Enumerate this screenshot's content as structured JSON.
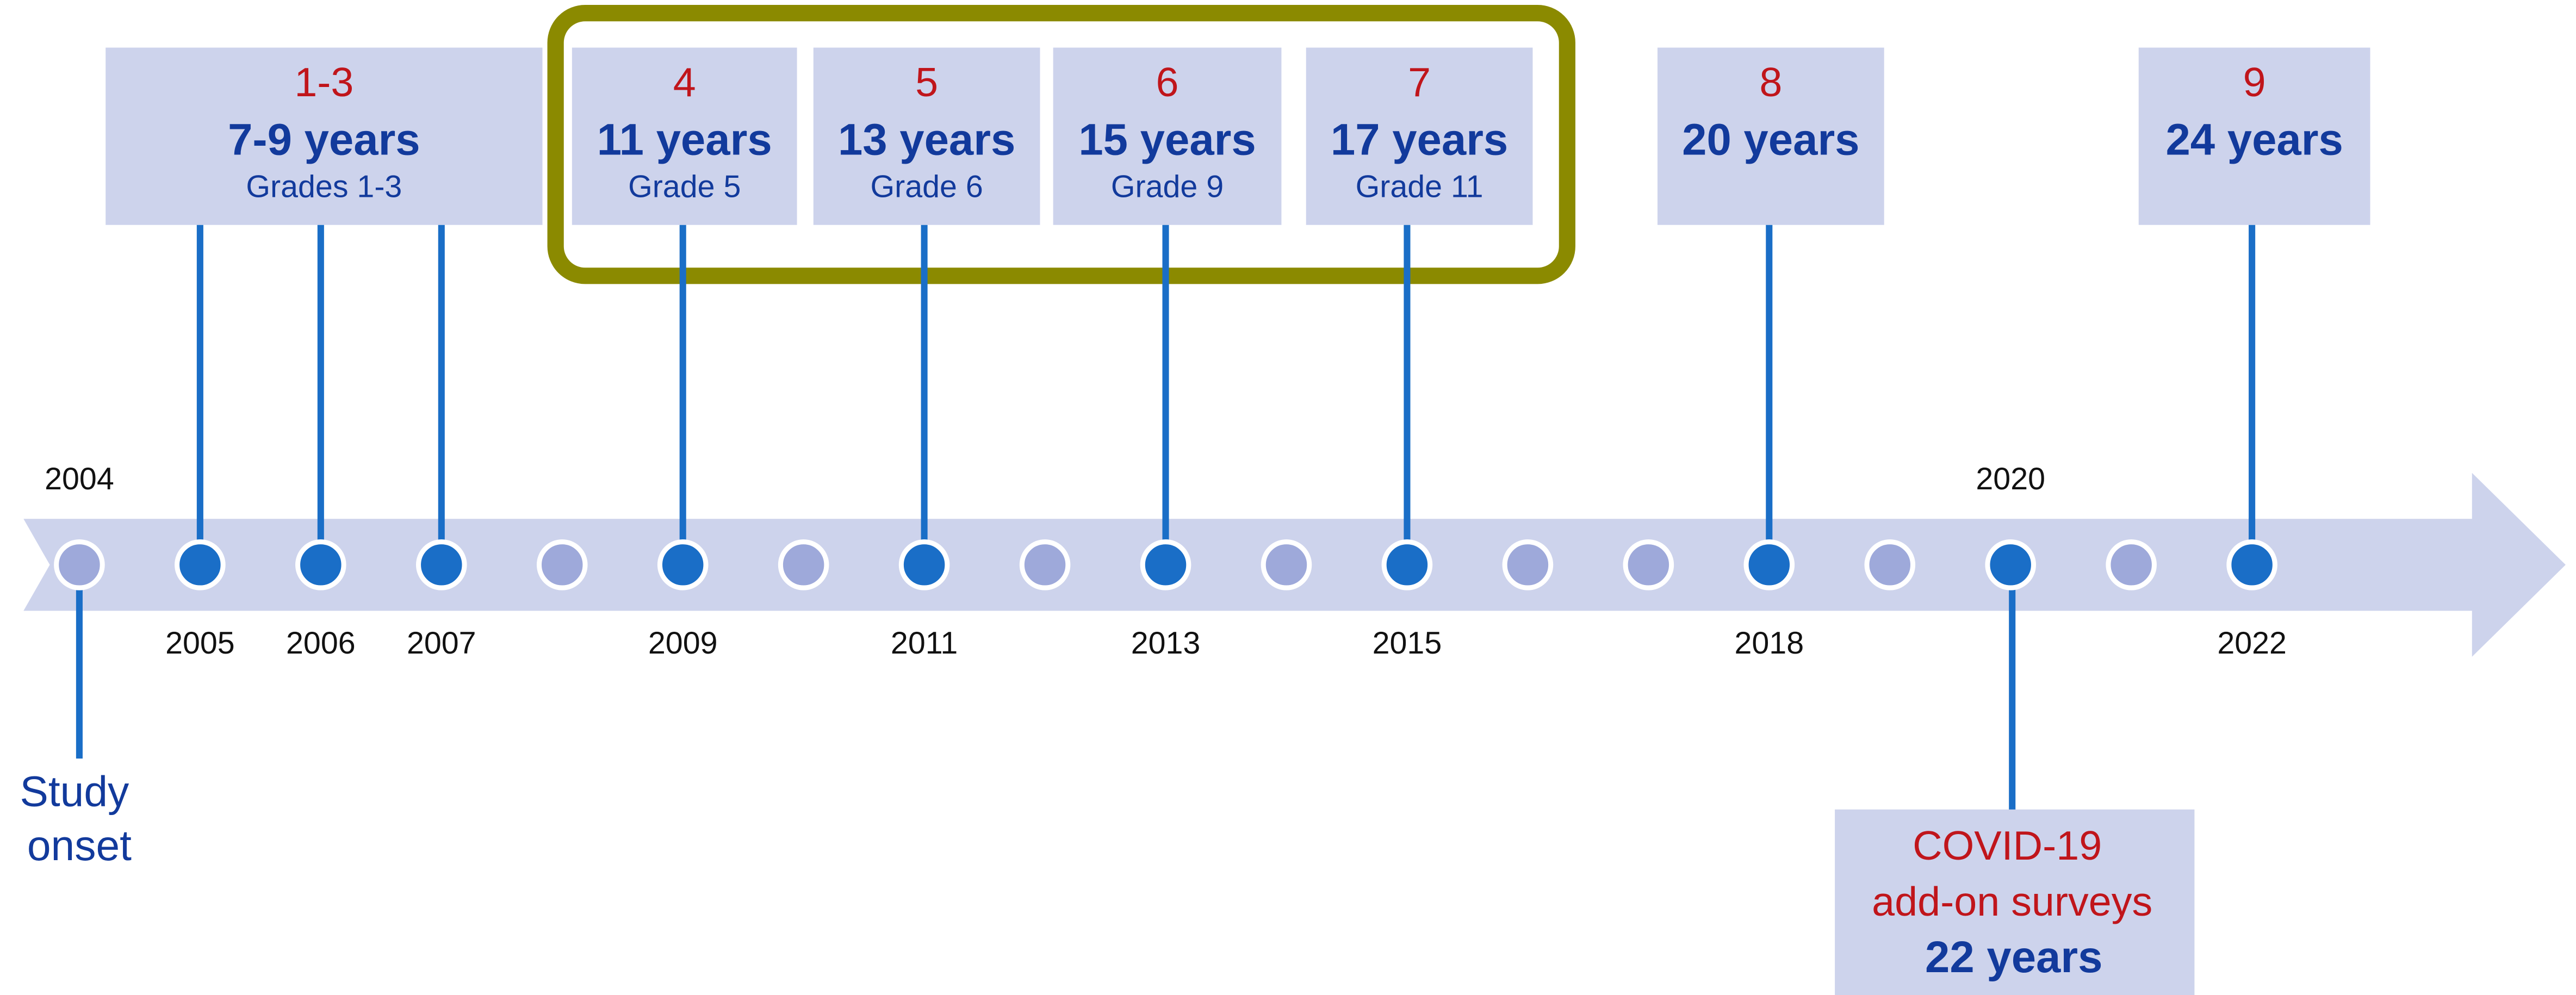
{
  "years": [
    "2004",
    "2005",
    "2006",
    "2007",
    "2009",
    "2011",
    "2013",
    "2015",
    "2018",
    "2020",
    "2022"
  ],
  "waves": [
    {
      "wave": "1-3",
      "age": "7-9 years",
      "grade": "Grades 1-3"
    },
    {
      "wave": "4",
      "age": "11 years",
      "grade": "Grade 5"
    },
    {
      "wave": "5",
      "age": "13 years",
      "grade": "Grade 6"
    },
    {
      "wave": "6",
      "age": "15 years",
      "grade": "Grade 9"
    },
    {
      "wave": "7",
      "age": "17 years",
      "grade": "Grade 11"
    },
    {
      "wave": "8",
      "age": "20 years"
    },
    {
      "wave": "9",
      "age": "24 years"
    }
  ],
  "onset": [
    "Study",
    "onset"
  ],
  "covid": {
    "lines": [
      "COVID-19",
      "add-on surveys"
    ],
    "age": "22 years"
  }
}
